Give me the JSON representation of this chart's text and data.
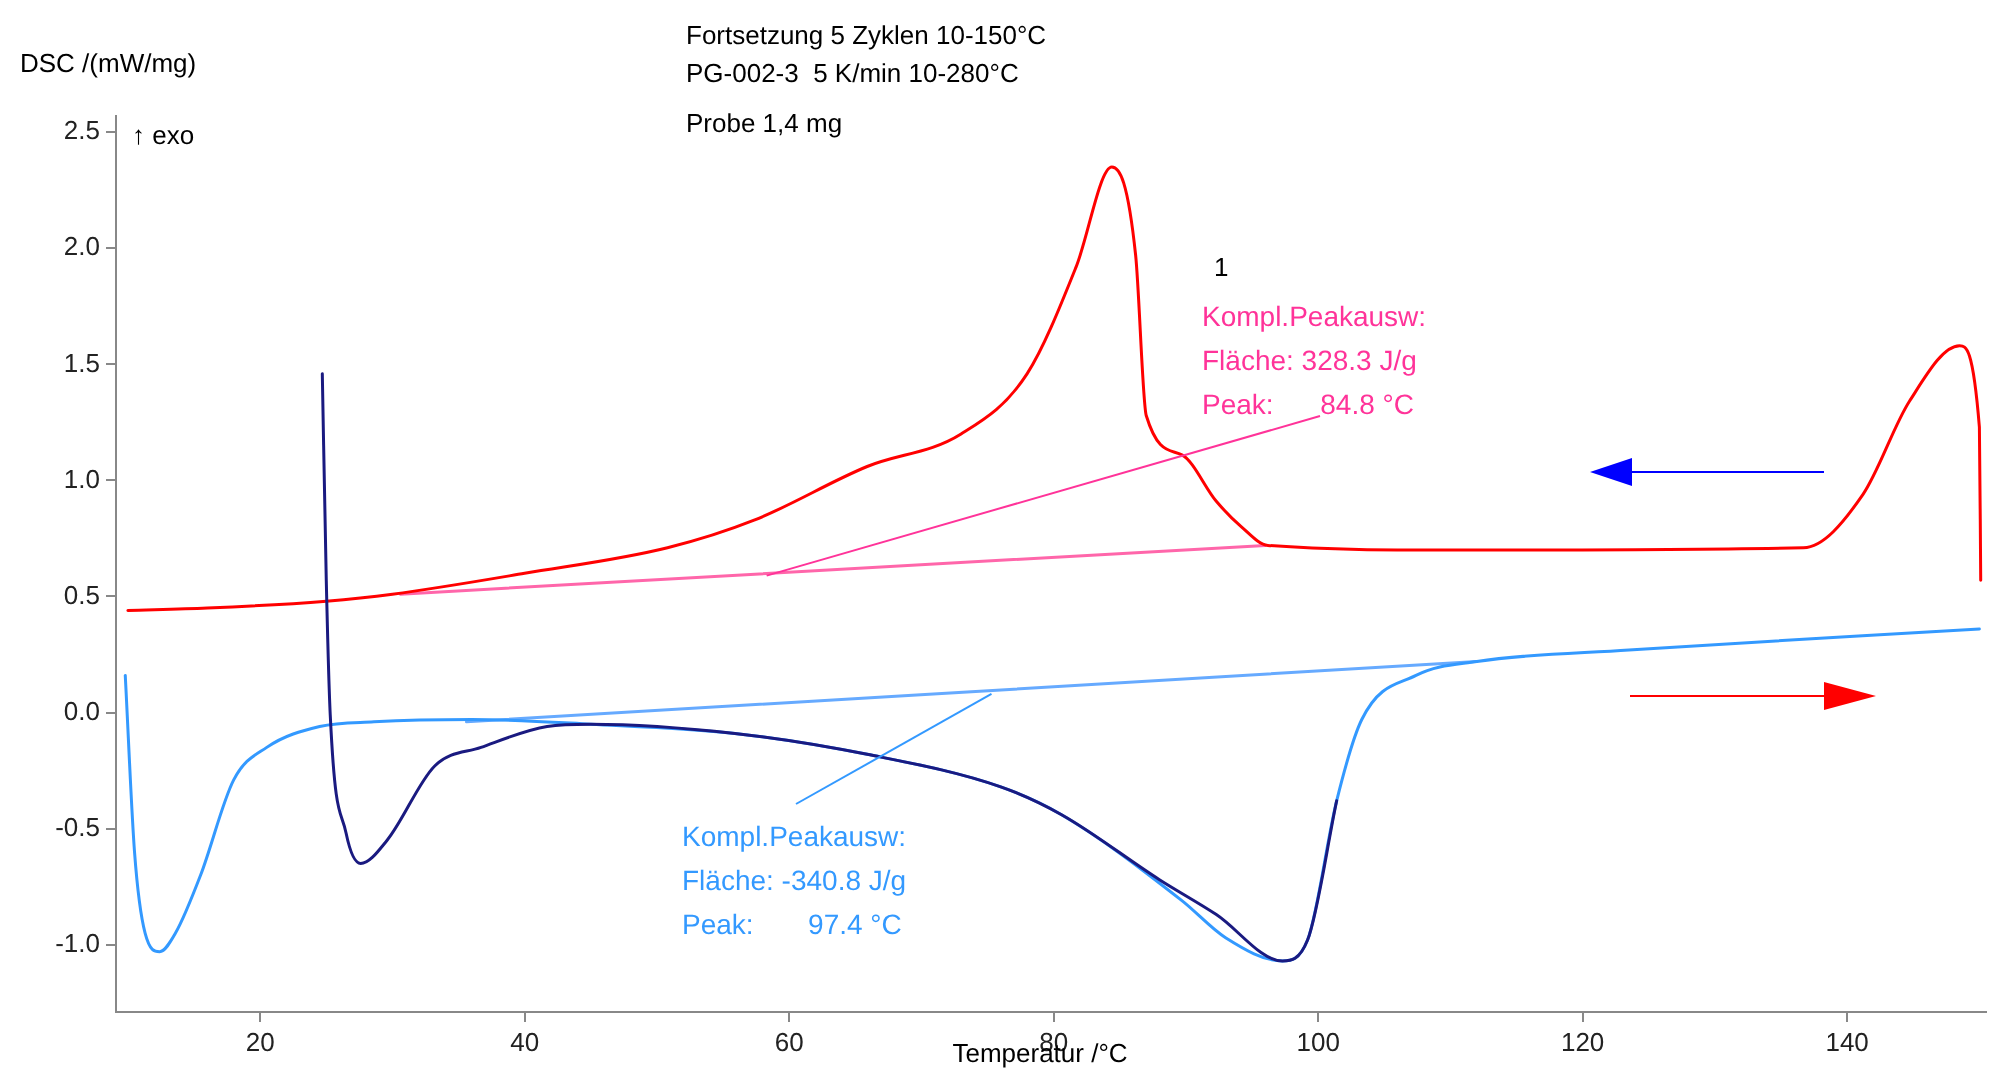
{
  "chart_data": {
    "type": "line",
    "title": "Fortsetzung 5 Zyklen 10-150°C",
    "subtitle": "PG-002-3  5 K/min 10-280°C",
    "xlabel": "Temperatur /°C",
    "ylabel": "DSC /(mW/mg)",
    "xlim": [
      9.1,
      150.5
    ],
    "xticks": [
      20,
      40,
      60,
      80,
      100,
      120,
      140
    ],
    "ylim": [
      -1.29,
      2.57
    ],
    "yticks": [
      {
        "value": -1,
        "label": "-1.0"
      },
      {
        "value": -0.5,
        "label": "-0.5"
      },
      {
        "value": 0,
        "label": "0.0"
      },
      {
        "value": 0.5,
        "label": "0.5"
      },
      {
        "value": 1,
        "label": "1.0"
      },
      {
        "value": 1.5,
        "label": "1.5"
      },
      {
        "value": 2,
        "label": "2.0"
      },
      {
        "value": 2.5,
        "label": "2.5"
      }
    ],
    "grid": false,
    "legend": false,
    "marker": "none",
    "line_style": "solid",
    "series": [
      {
        "color": "#1a1a80",
        "x": [
          24.7,
          25,
          25.3,
          26.5,
          27.6,
          29.6,
          33.2,
          36.7,
          41.7,
          45,
          55.9,
          65.9,
          76,
          80.6,
          88,
          92.3,
          97.3,
          99.2,
          101.4
        ],
        "values": [
          1.46,
          0.57,
          -0.01,
          -0.52,
          -0.65,
          -0.55,
          -0.23,
          -0.15,
          -0.06,
          -0.05,
          -0.09,
          -0.18,
          -0.32,
          -0.44,
          -0.72,
          -0.87,
          -1.07,
          -0.98,
          -0.38
        ]
      },
      {
        "color": "#3399ff",
        "x": [
          9.8,
          10.5,
          11.3,
          12.4,
          13.6,
          15.5,
          18,
          20.5,
          24.5,
          28.6,
          36,
          45,
          55.9,
          65.9,
          76,
          80.6,
          89.7,
          93,
          97.3,
          99.2,
          101.4,
          103.3,
          107.4,
          112,
          123.5,
          150
        ],
        "values": [
          0.16,
          -0.6,
          -0.95,
          -1.03,
          -0.95,
          -0.7,
          -0.29,
          -0.15,
          -0.06,
          -0.04,
          -0.03,
          -0.05,
          -0.09,
          -0.18,
          -0.32,
          -0.44,
          -0.81,
          -0.97,
          -1.07,
          -0.98,
          -0.38,
          -0.03,
          0.16,
          0.22,
          0.27,
          0.36
        ]
      },
      {
        "color": "#ff0000",
        "x": [
          10,
          16,
          25,
          30,
          40,
          50.8,
          57.4,
          65.9,
          73,
          78,
          81.7,
          84.4,
          86.2,
          87,
          89.7,
          92.3,
          94.2,
          96.2,
          110,
          136.7,
          141.2,
          144.7,
          148.5,
          150,
          150.1
        ],
        "values": [
          0.44,
          0.45,
          0.48,
          0.51,
          0.6,
          0.71,
          0.83,
          1.06,
          1.2,
          1.46,
          1.92,
          2.35,
          1.97,
          1.28,
          1.11,
          0.91,
          0.8,
          0.72,
          0.7,
          0.71,
          0.94,
          1.34,
          1.58,
          1.23,
          0.57
        ]
      },
      {
        "color": "#ff66aa",
        "x": [
          30.6,
          96
        ],
        "values": [
          0.51,
          0.72
        ]
      },
      {
        "color": "#66aaff",
        "x": [
          35.6,
          112
        ],
        "values": [
          -0.04,
          0.22
        ]
      }
    ],
    "annotations": [
      "Probe 1,4 mg",
      "↑ exo",
      "1",
      {
        "text": "Kompl.Peakausw:\nFläche: 328.3 J/g\nPeak:      84.8 °C",
        "x": 58.3,
        "y": 0.59
      },
      {
        "text": "Kompl.Peakausw:\nFläche: -340.8 J/g\nPeak:       97.4 °C",
        "x": 75.3,
        "y": 0.08
      }
    ]
  }
}
